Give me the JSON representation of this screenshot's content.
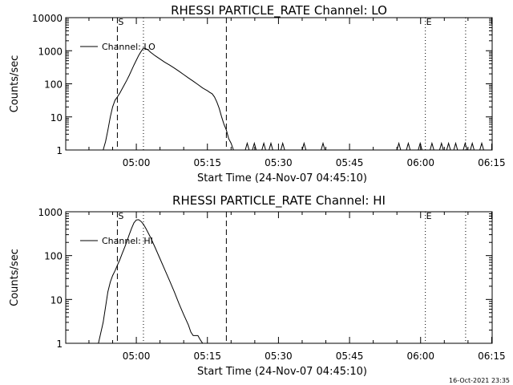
{
  "footer": {
    "timestamp": "16-Oct-2021 23:35"
  },
  "chart_data": [
    {
      "type": "line",
      "title": "RHESSI PARTICLE_RATE Channel: LO",
      "xlabel": "Start Time (24-Nov-07 04:45:10)",
      "ylabel": "Counts/sec",
      "yscale": "log",
      "ylim": [
        1,
        10000
      ],
      "xlim_minutes": [
        -14.9,
        75.1
      ],
      "yticks": [
        {
          "v": 1,
          "label": "1"
        },
        {
          "v": 10,
          "label": "10"
        },
        {
          "v": 100,
          "label": "100"
        },
        {
          "v": 1000,
          "label": "1000"
        },
        {
          "v": 10000,
          "label": "10000"
        }
      ],
      "xticks": [
        {
          "t": 0,
          "label": "05:00"
        },
        {
          "t": 15,
          "label": "05:15"
        },
        {
          "t": 30,
          "label": "05:30"
        },
        {
          "t": 45,
          "label": "05:45"
        },
        {
          "t": 60,
          "label": "06:00"
        },
        {
          "t": 75,
          "label": "06:15"
        }
      ],
      "legend": {
        "label": "Channel: LO",
        "placement": "top-left"
      },
      "markers": [
        {
          "t": -4,
          "style": "dashed",
          "label": "S"
        },
        {
          "t": 1.5,
          "style": "dotted",
          "label": ""
        },
        {
          "t": 19,
          "style": "dashed",
          "label": ""
        },
        {
          "t": 61,
          "style": "dotted",
          "label": "E"
        },
        {
          "t": 69.5,
          "style": "dotted",
          "label": ""
        }
      ],
      "series": [
        {
          "name": "Channel: LO",
          "points": [
            [
              -7,
              1
            ],
            [
              -6.5,
              1.8
            ],
            [
              -6,
              4
            ],
            [
              -5.5,
              10
            ],
            [
              -5,
              20
            ],
            [
              -4.5,
              32
            ],
            [
              -4,
              40
            ],
            [
              -3.5,
              52
            ],
            [
              -3,
              70
            ],
            [
              -2.5,
              95
            ],
            [
              -2,
              130
            ],
            [
              -1.5,
              180
            ],
            [
              -1,
              260
            ],
            [
              -0.5,
              370
            ],
            [
              0,
              520
            ],
            [
              0.5,
              720
            ],
            [
              1,
              950
            ],
            [
              1.5,
              1200
            ],
            [
              2,
              1150
            ],
            [
              2.5,
              1050
            ],
            [
              3,
              900
            ],
            [
              4,
              700
            ],
            [
              5,
              560
            ],
            [
              6,
              450
            ],
            [
              7,
              370
            ],
            [
              8,
              300
            ],
            [
              9,
              240
            ],
            [
              10,
              190
            ],
            [
              11,
              150
            ],
            [
              12,
              120
            ],
            [
              13,
              95
            ],
            [
              14,
              75
            ],
            [
              15,
              62
            ],
            [
              15.5,
              55
            ],
            [
              16,
              50
            ],
            [
              16.5,
              40
            ],
            [
              17,
              28
            ],
            [
              17.5,
              18
            ],
            [
              18,
              10
            ],
            [
              18.5,
              6
            ],
            [
              19,
              4
            ],
            [
              19.5,
              2.2
            ],
            [
              20,
              1.6
            ],
            [
              20.5,
              1
            ],
            [
              23,
              1
            ],
            [
              23.4,
              1.6
            ],
            [
              23.8,
              1
            ],
            [
              24.5,
              1
            ],
            [
              24.9,
              1.6
            ],
            [
              25.3,
              1
            ],
            [
              26.5,
              1
            ],
            [
              26.9,
              1.6
            ],
            [
              27.3,
              1
            ],
            [
              28,
              1
            ],
            [
              28.4,
              1.6
            ],
            [
              28.8,
              1
            ],
            [
              30.5,
              1
            ],
            [
              30.9,
              1.6
            ],
            [
              31.3,
              1
            ],
            [
              35,
              1
            ],
            [
              35.4,
              1.6
            ],
            [
              35.8,
              1
            ],
            [
              39,
              1
            ],
            [
              39.4,
              1.6
            ],
            [
              39.8,
              1
            ],
            [
              55,
              1
            ],
            [
              55.4,
              1.6
            ],
            [
              55.8,
              1
            ],
            [
              57,
              1
            ],
            [
              57.4,
              1.6
            ],
            [
              57.8,
              1
            ],
            [
              59.5,
              1
            ],
            [
              59.9,
              1.6
            ],
            [
              60.3,
              1
            ],
            [
              62,
              1
            ],
            [
              62.4,
              1.6
            ],
            [
              62.8,
              1
            ],
            [
              64,
              1
            ],
            [
              64.4,
              1.6
            ],
            [
              64.8,
              1
            ],
            [
              65.5,
              1
            ],
            [
              65.9,
              1.6
            ],
            [
              66.3,
              1
            ],
            [
              67,
              1
            ],
            [
              67.4,
              1.6
            ],
            [
              67.8,
              1
            ],
            [
              69,
              1
            ],
            [
              69.4,
              1.6
            ],
            [
              69.8,
              1
            ],
            [
              70.5,
              1
            ],
            [
              70.9,
              1.6
            ],
            [
              71.3,
              1
            ],
            [
              72.5,
              1
            ],
            [
              72.9,
              1.6
            ],
            [
              73.3,
              1
            ]
          ]
        }
      ]
    },
    {
      "type": "line",
      "title": "RHESSI PARTICLE_RATE Channel: HI",
      "xlabel": "Start Time (24-Nov-07 04:45:10)",
      "ylabel": "Counts/sec",
      "yscale": "log",
      "ylim": [
        1,
        1000
      ],
      "xlim_minutes": [
        -14.9,
        75.1
      ],
      "yticks": [
        {
          "v": 1,
          "label": "1"
        },
        {
          "v": 10,
          "label": "10"
        },
        {
          "v": 100,
          "label": "100"
        },
        {
          "v": 1000,
          "label": "1000"
        }
      ],
      "xticks": [
        {
          "t": 0,
          "label": "05:00"
        },
        {
          "t": 15,
          "label": "05:15"
        },
        {
          "t": 30,
          "label": "05:30"
        },
        {
          "t": 45,
          "label": "05:45"
        },
        {
          "t": 60,
          "label": "06:00"
        },
        {
          "t": 75,
          "label": "06:15"
        }
      ],
      "legend": {
        "label": "Channel: HI",
        "placement": "top-left"
      },
      "markers": [
        {
          "t": -4,
          "style": "dashed",
          "label": "S"
        },
        {
          "t": 1.5,
          "style": "dotted",
          "label": ""
        },
        {
          "t": 19,
          "style": "dashed",
          "label": ""
        },
        {
          "t": 61,
          "style": "dotted",
          "label": "E"
        },
        {
          "t": 69.5,
          "style": "dotted",
          "label": ""
        }
      ],
      "series": [
        {
          "name": "Channel: HI",
          "points": [
            [
              -8,
              1
            ],
            [
              -7,
              3
            ],
            [
              -6,
              15
            ],
            [
              -5.5,
              25
            ],
            [
              -5,
              35
            ],
            [
              -4.5,
              45
            ],
            [
              -4,
              60
            ],
            [
              -3.5,
              80
            ],
            [
              -3,
              110
            ],
            [
              -2.5,
              150
            ],
            [
              -2,
              210
            ],
            [
              -1.5,
              300
            ],
            [
              -1,
              420
            ],
            [
              -0.5,
              560
            ],
            [
              0,
              650
            ],
            [
              0.5,
              660
            ],
            [
              1,
              600
            ],
            [
              1.5,
              520
            ],
            [
              2,
              420
            ],
            [
              3,
              260
            ],
            [
              4,
              150
            ],
            [
              5,
              85
            ],
            [
              6,
              48
            ],
            [
              7,
              27
            ],
            [
              8,
              15
            ],
            [
              9,
              8
            ],
            [
              10,
              4.5
            ],
            [
              11,
              2.6
            ],
            [
              11.5,
              1.8
            ],
            [
              12,
              1.5
            ],
            [
              13,
              1.5
            ],
            [
              13.5,
              1.2
            ],
            [
              14,
              1
            ]
          ]
        }
      ]
    }
  ]
}
